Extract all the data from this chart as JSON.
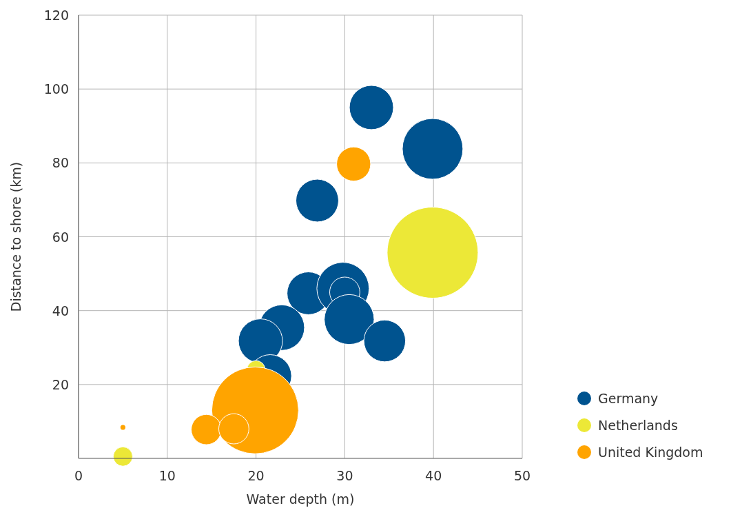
{
  "chart_data": {
    "type": "bubble",
    "xlabel": "Water depth (m)",
    "ylabel": "Distance to shore (km)",
    "xlim": [
      0,
      50
    ],
    "xticks": [
      0,
      10,
      20,
      30,
      40,
      50
    ],
    "ylim": [
      0,
      120
    ],
    "yticks": [
      20,
      40,
      60,
      80,
      100,
      120
    ],
    "grid": true,
    "legend": "right",
    "series": [
      {
        "name": "Germany",
        "color": "#00538f",
        "x": [
          33,
          39.9,
          26.9,
          25.9,
          29.8,
          30,
          30.5,
          22.9,
          20.5,
          34.5,
          21.6
        ],
        "values": [
          95,
          83.8,
          69.8,
          44.7,
          46,
          45,
          37.6,
          35.4,
          31.8,
          31.8,
          22.3
        ],
        "sizes": [
          0.235,
          0.444,
          0.22,
          0.22,
          0.33,
          0.11,
          0.3,
          0.25,
          0.235,
          0.21,
          0.22
        ]
      },
      {
        "name": "Netherlands",
        "color": "#ece837",
        "x": [
          39.9,
          20,
          5
        ],
        "values": [
          55.7,
          24,
          0.5
        ],
        "sizes": [
          1,
          0.04,
          0.045
        ]
      },
      {
        "name": "United Kingdom",
        "color": "#ffa400",
        "x": [
          31,
          19.9,
          14.4,
          17.5,
          5
        ],
        "values": [
          79.7,
          13,
          7.8,
          8,
          8.4
        ],
        "sizes": [
          0.14,
          0.91,
          0.11,
          0.11,
          0.003
        ]
      }
    ]
  }
}
